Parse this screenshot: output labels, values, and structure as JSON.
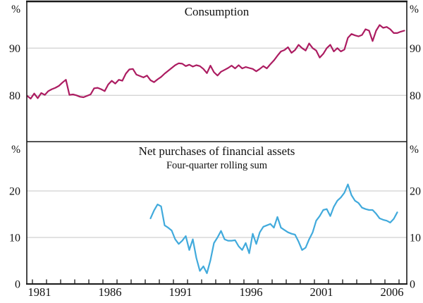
{
  "colors": {
    "background": "#ffffff",
    "frame": "#1a1a1a",
    "grid": "#c5c5c5",
    "text": "#111111"
  },
  "x_axis": {
    "xlim": [
      1980.6,
      2007.55
    ],
    "tick_years_start": 1981,
    "tick_years_end": 2007,
    "labeled_years": [
      1981,
      1986,
      1991,
      1996,
      2001,
      2006
    ]
  },
  "chart_data": [
    {
      "type": "line",
      "panel": "top",
      "title": "Consumption",
      "unit_left": "%",
      "unit_right": "%",
      "ylim": [
        70.2,
        99.9
      ],
      "yticks": [
        80,
        90
      ],
      "grid": true,
      "frequency": "quarterly",
      "x_start": 1980.625,
      "x_step": 0.25,
      "series": [
        {
          "name": "Consumption",
          "color": "#AC1C61",
          "values": [
            79.9,
            79.3,
            80.4,
            79.4,
            80.5,
            80.1,
            80.9,
            81.3,
            81.6,
            82.0,
            82.7,
            83.3,
            80.1,
            80.2,
            80.0,
            79.7,
            79.6,
            79.9,
            80.2,
            81.5,
            81.6,
            81.3,
            80.9,
            82.3,
            83.1,
            82.5,
            83.3,
            83.1,
            84.6,
            85.5,
            85.6,
            84.4,
            84.1,
            83.8,
            84.2,
            83.2,
            82.8,
            83.4,
            83.9,
            84.6,
            85.2,
            85.8,
            86.4,
            86.8,
            86.7,
            86.2,
            86.5,
            86.1,
            86.4,
            86.2,
            85.6,
            84.7,
            86.3,
            84.9,
            84.2,
            85.0,
            85.4,
            85.8,
            86.3,
            85.7,
            86.4,
            85.7,
            86.0,
            85.8,
            85.6,
            85.1,
            85.6,
            86.2,
            85.7,
            86.6,
            87.4,
            88.4,
            89.3,
            89.6,
            90.2,
            89.0,
            89.6,
            90.7,
            90.0,
            89.5,
            91.0,
            90.0,
            89.5,
            88.0,
            88.8,
            90.0,
            90.7,
            89.3,
            90.0,
            89.3,
            89.7,
            92.2,
            93.0,
            92.7,
            92.5,
            92.8,
            94.0,
            93.7,
            91.5,
            93.7,
            94.9,
            94.3,
            94.5,
            94.0,
            93.2,
            93.2,
            93.5,
            93.7
          ]
        }
      ]
    },
    {
      "type": "line",
      "panel": "bottom",
      "title": "Net purchases of financial assets",
      "subtitle": "Four-quarter rolling sum",
      "unit_left": "%",
      "unit_right": "%",
      "ylim": [
        0,
        30.6
      ],
      "yticks": [
        0,
        10,
        20
      ],
      "grid": true,
      "frequency": "quarterly",
      "x_start": 1989.375,
      "x_step": 0.25,
      "series": [
        {
          "name": "Net purchases of financial assets (four-quarter rolling sum)",
          "color": "#41AADC",
          "values": [
            14.1,
            15.8,
            17.1,
            16.7,
            12.6,
            12.1,
            11.5,
            9.6,
            8.6,
            9.3,
            10.3,
            7.3,
            9.6,
            5.6,
            2.8,
            3.8,
            2.3,
            5.1,
            8.8,
            10.0,
            11.4,
            9.6,
            9.3,
            9.3,
            9.4,
            8.1,
            7.3,
            8.8,
            6.6,
            10.8,
            8.6,
            11.1,
            12.3,
            12.6,
            12.9,
            12.1,
            14.4,
            12.1,
            11.6,
            11.1,
            10.8,
            10.6,
            9.1,
            7.3,
            7.8,
            9.6,
            11.1,
            13.6,
            14.6,
            15.9,
            16.1,
            14.6,
            16.6,
            17.9,
            18.6,
            19.6,
            21.4,
            19.1,
            17.9,
            17.4,
            16.4,
            16.1,
            15.9,
            15.9,
            15.1,
            14.1,
            13.8,
            13.6,
            13.2,
            14.0,
            15.4
          ]
        }
      ]
    }
  ]
}
